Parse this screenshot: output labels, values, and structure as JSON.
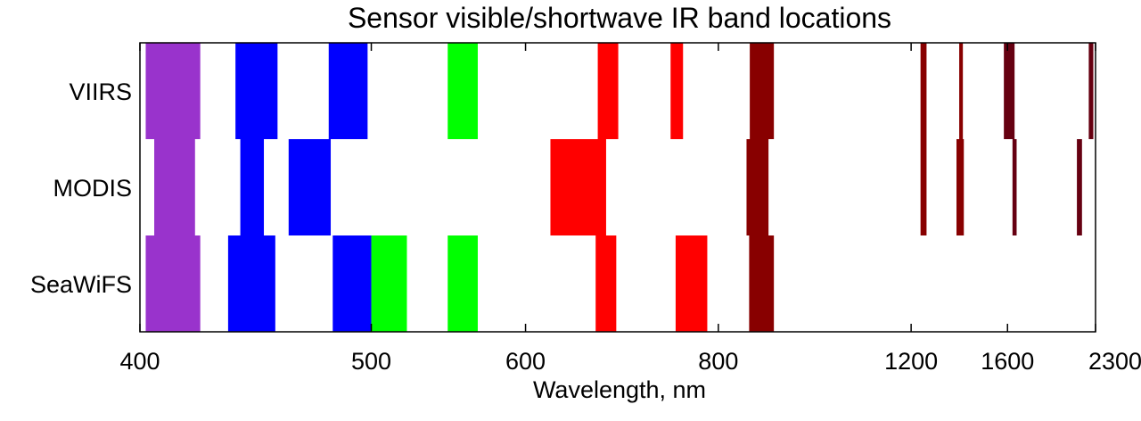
{
  "chart_data": {
    "type": "bar",
    "orientation": "horizontal-ranges",
    "title": "Sensor visible/shortwave IR band locations",
    "xlabel": "Wavelength, nm",
    "ylabel": "",
    "x_ticks": [
      "400",
      "500",
      "600",
      "800",
      "1200",
      "1600",
      "2300"
    ],
    "x_scale": "reciprocal (axis linear in 1/wavelength)",
    "xlim": [
      400,
      2300
    ],
    "grid": false,
    "categories": [
      "VIIRS",
      "MODIS",
      "SeaWiFS"
    ],
    "series": [
      {
        "sensor": "VIIRS",
        "bands": [
          {
            "start": 402,
            "end": 422,
            "color": "#9933cc"
          },
          {
            "start": 436,
            "end": 454,
            "color": "#0000ff"
          },
          {
            "start": 478,
            "end": 498,
            "color": "#0000ff"
          },
          {
            "start": 545,
            "end": 565,
            "color": "#00ff00"
          },
          {
            "start": 662,
            "end": 682,
            "color": "#ff0000"
          },
          {
            "start": 739,
            "end": 754,
            "color": "#ff0000"
          },
          {
            "start": 846,
            "end": 885,
            "color": "#880000"
          },
          {
            "start": 1230,
            "end": 1250,
            "color": "#880000"
          },
          {
            "start": 1371,
            "end": 1386,
            "color": "#880000"
          },
          {
            "start": 1580,
            "end": 1640,
            "color": "#660011"
          },
          {
            "start": 2225,
            "end": 2275,
            "color": "#660011"
          }
        ]
      },
      {
        "sensor": "MODIS",
        "bands": [
          {
            "start": 405,
            "end": 420,
            "color": "#9933cc"
          },
          {
            "start": 438,
            "end": 448,
            "color": "#0000ff"
          },
          {
            "start": 459,
            "end": 479,
            "color": "#0000ff"
          },
          {
            "start": 620,
            "end": 670,
            "color": "#ff0000"
          },
          {
            "start": 841,
            "end": 876,
            "color": "#880000"
          },
          {
            "start": 1230,
            "end": 1250,
            "color": "#880000"
          },
          {
            "start": 1360,
            "end": 1390,
            "color": "#880000"
          },
          {
            "start": 1628,
            "end": 1652,
            "color": "#660011"
          },
          {
            "start": 2105,
            "end": 2155,
            "color": "#660011"
          }
        ]
      },
      {
        "sensor": "SeaWiFS",
        "bands": [
          {
            "start": 402,
            "end": 422,
            "color": "#9933cc"
          },
          {
            "start": 433,
            "end": 453,
            "color": "#0000ff"
          },
          {
            "start": 480,
            "end": 500,
            "color": "#0000ff"
          },
          {
            "start": 500,
            "end": 520,
            "color": "#00ff00"
          },
          {
            "start": 545,
            "end": 565,
            "color": "#00ff00"
          },
          {
            "start": 660,
            "end": 680,
            "color": "#ff0000"
          },
          {
            "start": 745,
            "end": 785,
            "color": "#ff0000"
          },
          {
            "start": 845,
            "end": 885,
            "color": "#880000"
          }
        ]
      }
    ]
  }
}
